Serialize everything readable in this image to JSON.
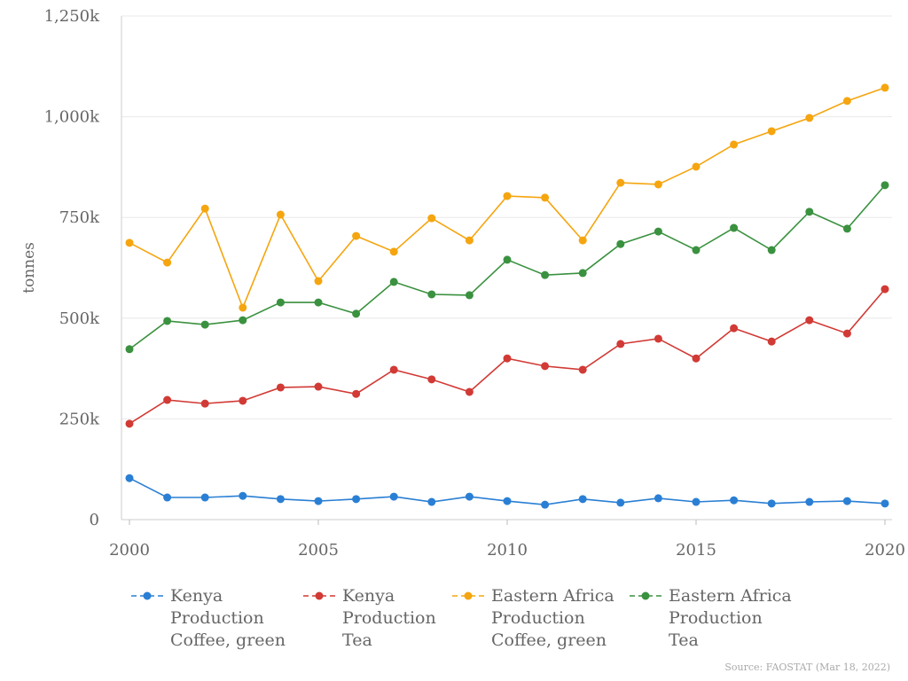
{
  "chart_data": {
    "type": "line",
    "title": "",
    "xlabel": "",
    "ylabel": "tonnes",
    "xlim": [
      2000,
      2020
    ],
    "ylim": [
      0,
      1250000
    ],
    "grid": "horizontal",
    "legend_position": "bottom",
    "x_ticks": [
      2000,
      2005,
      2010,
      2015,
      2020
    ],
    "y_ticks": [
      0,
      250000,
      500000,
      750000,
      1000000,
      1250000
    ],
    "y_tick_labels": [
      "0",
      "250k",
      "500k",
      "750k",
      "1,000k",
      "1,250k"
    ],
    "x": [
      2000,
      2001,
      2002,
      2003,
      2004,
      2005,
      2006,
      2007,
      2008,
      2009,
      2010,
      2011,
      2012,
      2013,
      2014,
      2015,
      2016,
      2017,
      2018,
      2019,
      2020
    ],
    "series": [
      {
        "name": "Kenya\nProduction\nCoffee, green",
        "color": "#2a7fd4",
        "values": [
          103000,
          55000,
          55000,
          59000,
          51000,
          46000,
          51000,
          57000,
          44000,
          57000,
          46000,
          37000,
          51000,
          42000,
          53000,
          44000,
          48000,
          40000,
          44000,
          46000,
          40000
        ]
      },
      {
        "name": "Kenya\nProduction\nTea",
        "color": "#d13a35",
        "values": [
          238000,
          297000,
          288000,
          295000,
          328000,
          330000,
          312000,
          372000,
          348000,
          317000,
          400000,
          381000,
          372000,
          436000,
          449000,
          400000,
          475000,
          442000,
          495000,
          462000,
          572000
        ]
      },
      {
        "name": "Eastern Africa\nProduction\nCoffee, green",
        "color": "#f5a50f",
        "values": [
          687000,
          638000,
          772000,
          526000,
          757000,
          592000,
          704000,
          665000,
          748000,
          693000,
          803000,
          799000,
          693000,
          836000,
          832000,
          876000,
          931000,
          964000,
          997000,
          1039000,
          1072000
        ]
      },
      {
        "name": "Eastern Africa\nProduction\nTea",
        "color": "#3a913f",
        "values": [
          423000,
          493000,
          484000,
          495000,
          539000,
          539000,
          511000,
          590000,
          559000,
          557000,
          645000,
          607000,
          612000,
          684000,
          715000,
          669000,
          724000,
          669000,
          764000,
          722000,
          830000
        ]
      }
    ]
  },
  "source": "Source: FAOSTAT (Mar 18, 2022)"
}
